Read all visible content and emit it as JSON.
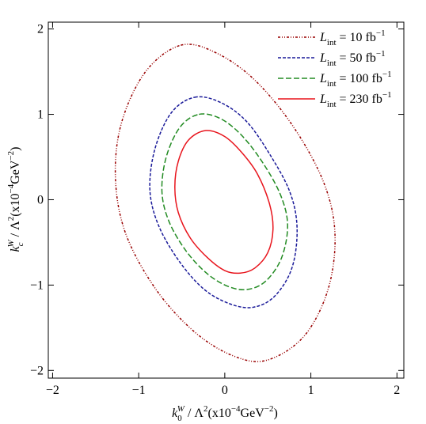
{
  "chart_data": {
    "type": "contour",
    "x_label": [
      {
        "text": "k",
        "style": "italic"
      },
      {
        "text": "0",
        "pos": "sub"
      },
      {
        "text": "W",
        "pos": "sup",
        "style": "italic"
      },
      {
        "text": " / Λ"
      },
      {
        "text": "2",
        "pos": "sup"
      },
      {
        "text": "(x10"
      },
      {
        "text": "−4",
        "pos": "sup"
      },
      {
        "text": "GeV"
      },
      {
        "text": "−2",
        "pos": "sup"
      },
      {
        "text": ")"
      }
    ],
    "y_label": [
      {
        "text": "k",
        "style": "italic"
      },
      {
        "text": "c",
        "pos": "sub",
        "style": "italic"
      },
      {
        "text": "W",
        "pos": "sup",
        "style": "italic"
      },
      {
        "text": " / Λ"
      },
      {
        "text": "2",
        "pos": "sup"
      },
      {
        "text": "(x10"
      },
      {
        "text": "−4",
        "pos": "sup"
      },
      {
        "text": "GeV"
      },
      {
        "text": "−2",
        "pos": "sup"
      },
      {
        "text": ")"
      }
    ],
    "xlim": [
      -2.05,
      2.08
    ],
    "ylim": [
      -2.09,
      2.08
    ],
    "xticks": [
      {
        "value": -2,
        "label": "−2"
      },
      {
        "value": -1,
        "label": "−1"
      },
      0,
      1,
      2
    ],
    "yticks": [
      {
        "value": -2,
        "label": "−2"
      },
      {
        "value": -1,
        "label": "−1"
      },
      0,
      1,
      2
    ],
    "legend": "upper right",
    "series": [
      {
        "name": [
          {
            "text": "L",
            "style": "italic"
          },
          {
            "text": "int",
            "pos": "sub"
          },
          {
            "text": " = 10 fb"
          },
          {
            "text": "−1",
            "pos": "sup"
          }
        ],
        "color": "#990000",
        "dash": "dashdotdot",
        "x": [
          -0.51,
          -0.1,
          0.35,
          0.8,
          1.15,
          1.28,
          1.2,
          0.92,
          0.49,
          0.1,
          -0.35,
          -0.8,
          -1.15,
          -1.27,
          -1.2,
          -0.92
        ],
        "y": [
          1.81,
          1.72,
          1.4,
          0.85,
          0.2,
          -0.4,
          -1.05,
          -1.6,
          -1.88,
          -1.83,
          -1.55,
          -1.05,
          -0.4,
          0.25,
          0.9,
          1.5
        ]
      },
      {
        "name": [
          {
            "text": "L",
            "style": "italic"
          },
          {
            "text": "int",
            "pos": "sub"
          },
          {
            "text": " = 50 fb"
          },
          {
            "text": "−1",
            "pos": "sup"
          }
        ],
        "color": "#1a1a99",
        "dash": "dashed",
        "x": [
          -0.35,
          -0.05,
          0.25,
          0.53,
          0.76,
          0.84,
          0.78,
          0.58,
          0.33,
          0.06,
          -0.24,
          -0.53,
          -0.77,
          -0.87,
          -0.81,
          -0.62
        ],
        "y": [
          1.2,
          1.14,
          0.92,
          0.52,
          0.08,
          -0.34,
          -0.8,
          -1.13,
          -1.26,
          -1.22,
          -1.05,
          -0.72,
          -0.3,
          0.12,
          0.6,
          1.02
        ]
      },
      {
        "name": [
          {
            "text": "L",
            "style": "italic"
          },
          {
            "text": "int",
            "pos": "sub"
          },
          {
            "text": " = 100 fb"
          },
          {
            "text": "−1",
            "pos": "sup"
          }
        ],
        "color": "#228b22",
        "dash": "longdash",
        "x": [
          -0.3,
          -0.05,
          0.2,
          0.45,
          0.65,
          0.73,
          0.66,
          0.48,
          0.27,
          0.05,
          -0.2,
          -0.45,
          -0.65,
          -0.73,
          -0.68,
          -0.52
        ],
        "y": [
          1.0,
          0.95,
          0.75,
          0.42,
          0.05,
          -0.3,
          -0.68,
          -0.95,
          -1.05,
          -1.02,
          -0.87,
          -0.6,
          -0.25,
          0.1,
          0.5,
          0.85
        ]
      },
      {
        "name": [
          {
            "text": "L",
            "style": "italic"
          },
          {
            "text": "int",
            "pos": "sub"
          },
          {
            "text": " = 230 fb"
          },
          {
            "text": "−1",
            "pos": "sup"
          }
        ],
        "color": "#e8141c",
        "dash": "solid",
        "x": [
          -0.22,
          0.0,
          0.2,
          0.38,
          0.52,
          0.56,
          0.5,
          0.35,
          0.18,
          0.0,
          -0.2,
          -0.4,
          -0.54,
          -0.58,
          -0.54,
          -0.42
        ],
        "y": [
          0.81,
          0.74,
          0.55,
          0.3,
          -0.05,
          -0.35,
          -0.62,
          -0.8,
          -0.86,
          -0.83,
          -0.68,
          -0.45,
          -0.15,
          0.15,
          0.45,
          0.7
        ]
      }
    ]
  }
}
